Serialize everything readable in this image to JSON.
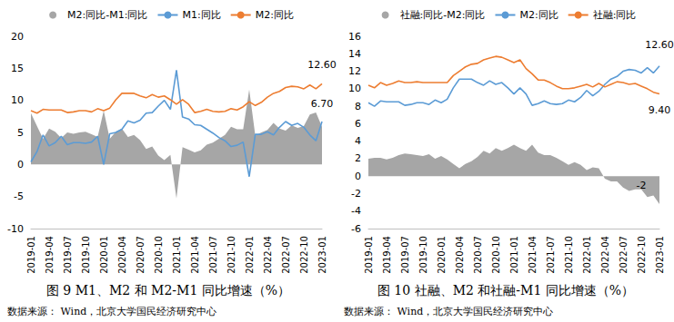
{
  "chart_data": [
    {
      "type": "line",
      "title": "图 9 M1、M2 和 M2-M1 同比增速（%）",
      "source": "数据来源： Wind，北京大学国民经济研究中心",
      "categories": [
        "2019-01",
        null,
        null,
        "2019-04",
        null,
        null,
        "2019-07",
        null,
        null,
        "2019-10",
        null,
        null,
        "2020-01",
        null,
        null,
        "2020-04",
        null,
        null,
        "2020-07",
        null,
        null,
        "2020-10",
        null,
        null,
        "2021-01",
        null,
        null,
        "2021-04",
        null,
        null,
        "2021-07",
        null,
        null,
        "2021-10",
        null,
        null,
        "2022-01",
        null,
        null,
        "2022-04",
        null,
        null,
        "2022-07",
        null,
        null,
        "2022-10",
        null,
        null,
        "2023-01"
      ],
      "series": [
        {
          "name": "M2:同比-M1:同比",
          "type": "area",
          "color": "#a6a6a6",
          "values": [
            8.0,
            6.0,
            4.0,
            5.6,
            5.1,
            4.1,
            5.0,
            4.8,
            5.0,
            5.1,
            4.7,
            4.3,
            8.4,
            4.0,
            5.1,
            5.6,
            4.3,
            4.6,
            3.8,
            2.4,
            2.8,
            1.4,
            0.7,
            1.5,
            -5.3,
            2.7,
            2.3,
            1.9,
            2.2,
            3.1,
            3.4,
            4.0,
            4.6,
            5.9,
            5.5,
            5.5,
            11.7,
            4.5,
            5.0,
            5.4,
            6.5,
            5.6,
            5.3,
            6.1,
            5.7,
            6.0,
            7.8,
            8.1,
            5.9
          ]
        },
        {
          "name": "M1:同比",
          "type": "line",
          "color": "#5b9bd5",
          "marker": "none",
          "line_style": "solid",
          "values": [
            0.4,
            2.0,
            4.6,
            2.9,
            3.4,
            4.4,
            3.1,
            3.4,
            3.4,
            3.3,
            3.5,
            4.4,
            0.0,
            4.8,
            5.0,
            5.5,
            6.8,
            6.5,
            6.9,
            8.0,
            8.1,
            9.1,
            10.0,
            8.6,
            14.7,
            7.4,
            7.1,
            6.2,
            6.1,
            5.5,
            4.9,
            4.2,
            3.7,
            2.8,
            3.0,
            3.5,
            -1.9,
            4.7,
            4.7,
            5.1,
            4.6,
            5.8,
            6.7,
            6.1,
            6.4,
            5.8,
            4.6,
            3.7,
            6.7
          ]
        },
        {
          "name": "M2:同比",
          "type": "line",
          "color": "#ed7d31",
          "marker": "none",
          "line_style": "solid",
          "values": [
            8.4,
            8.0,
            8.6,
            8.5,
            8.5,
            8.5,
            8.1,
            8.2,
            8.4,
            8.4,
            8.2,
            8.7,
            8.4,
            8.8,
            10.1,
            11.1,
            11.1,
            11.1,
            10.7,
            10.4,
            10.9,
            10.5,
            10.7,
            10.1,
            9.4,
            10.1,
            9.4,
            8.1,
            8.3,
            8.6,
            8.3,
            8.2,
            8.3,
            8.7,
            8.5,
            9.0,
            9.8,
            9.2,
            9.7,
            10.5,
            11.1,
            11.4,
            12.0,
            12.2,
            12.1,
            11.8,
            12.4,
            11.8,
            12.6
          ]
        }
      ],
      "annotations": [
        {
          "text": "12.60",
          "x": "2023-01",
          "y": 15.5
        },
        {
          "text": "6.70",
          "x": "2023-01",
          "y": 9.5
        }
      ],
      "ylim": [
        -10,
        20
      ],
      "yticks": [
        -10,
        -5,
        0,
        5,
        10,
        15,
        20
      ],
      "grid": false,
      "legend": "top"
    },
    {
      "type": "line",
      "title": "图 10 社融、M2 和社融-M1 同比增速（%）",
      "source": "数据来源： Wind，北京大学国民经济研究中心",
      "categories": [
        "2019-01",
        null,
        null,
        "2019-04",
        null,
        null,
        "2019-07",
        null,
        null,
        "2019-10",
        null,
        null,
        "2020-01",
        null,
        null,
        "2020-04",
        null,
        null,
        "2020-07",
        null,
        null,
        "2020-10",
        null,
        null,
        "2021-01",
        null,
        null,
        "2021-04",
        null,
        null,
        "2021-07",
        null,
        null,
        "2021-10",
        null,
        null,
        "2022-01",
        null,
        null,
        "2022-04",
        null,
        null,
        "2022-07",
        null,
        null,
        "2022-10",
        null,
        null,
        "2023-01"
      ],
      "series": [
        {
          "name": "社融:同比-M2:同比",
          "type": "area",
          "color": "#a6a6a6",
          "values": [
            2.0,
            2.1,
            2.1,
            1.9,
            2.1,
            2.4,
            2.6,
            2.5,
            2.4,
            2.3,
            2.5,
            2.0,
            2.3,
            1.9,
            1.4,
            0.9,
            1.4,
            1.7,
            2.2,
            2.9,
            2.6,
            3.2,
            2.9,
            3.2,
            3.6,
            3.2,
            2.9,
            3.6,
            2.7,
            2.4,
            2.4,
            2.1,
            1.7,
            1.3,
            1.6,
            1.3,
            0.7,
            1.0,
            0.9,
            -0.3,
            -0.6,
            -0.6,
            -1.3,
            -1.7,
            -1.5,
            -1.5,
            -2.4,
            -2.2,
            -3.2
          ]
        },
        {
          "name": "M2:同比",
          "type": "line",
          "color": "#5b9bd5",
          "marker": "none",
          "line_style": "solid",
          "values": [
            8.4,
            8.0,
            8.6,
            8.5,
            8.5,
            8.5,
            8.1,
            8.2,
            8.4,
            8.4,
            8.2,
            8.7,
            8.4,
            8.8,
            10.1,
            11.1,
            11.1,
            11.1,
            10.7,
            10.4,
            10.9,
            10.5,
            10.7,
            10.1,
            9.4,
            10.1,
            9.4,
            8.1,
            8.3,
            8.6,
            8.3,
            8.2,
            8.3,
            8.7,
            8.5,
            9.0,
            9.8,
            9.2,
            9.7,
            10.5,
            11.1,
            11.4,
            12.0,
            12.2,
            12.1,
            11.8,
            12.4,
            11.8,
            12.6
          ]
        },
        {
          "name": "社融:同比",
          "type": "line",
          "color": "#ed7d31",
          "marker": "none",
          "line_style": "solid",
          "values": [
            10.4,
            10.1,
            10.7,
            10.4,
            10.6,
            10.9,
            10.7,
            10.7,
            10.8,
            10.7,
            10.7,
            10.7,
            10.7,
            10.7,
            11.5,
            12.0,
            12.5,
            12.8,
            12.9,
            13.3,
            13.5,
            13.7,
            13.6,
            13.3,
            13.0,
            13.3,
            12.3,
            11.7,
            11.0,
            11.0,
            10.7,
            10.3,
            10.0,
            10.0,
            10.1,
            10.3,
            10.5,
            10.2,
            10.6,
            10.2,
            10.5,
            10.8,
            10.7,
            10.5,
            10.6,
            10.3,
            10.0,
            9.6,
            9.4
          ]
        }
      ],
      "annotations": [
        {
          "text": "12.60",
          "x": "2023-01",
          "y": 15.0
        },
        {
          "text": "9.40",
          "x": "2023-01",
          "y": 7.5
        },
        {
          "text": "-2",
          "x": "2022-10",
          "y": -1.1
        }
      ],
      "ylim": [
        -6,
        16
      ],
      "yticks": [
        -6,
        -4,
        -2,
        0,
        2,
        4,
        6,
        8,
        10,
        12,
        14,
        16
      ],
      "grid": false,
      "legend": "top"
    }
  ]
}
